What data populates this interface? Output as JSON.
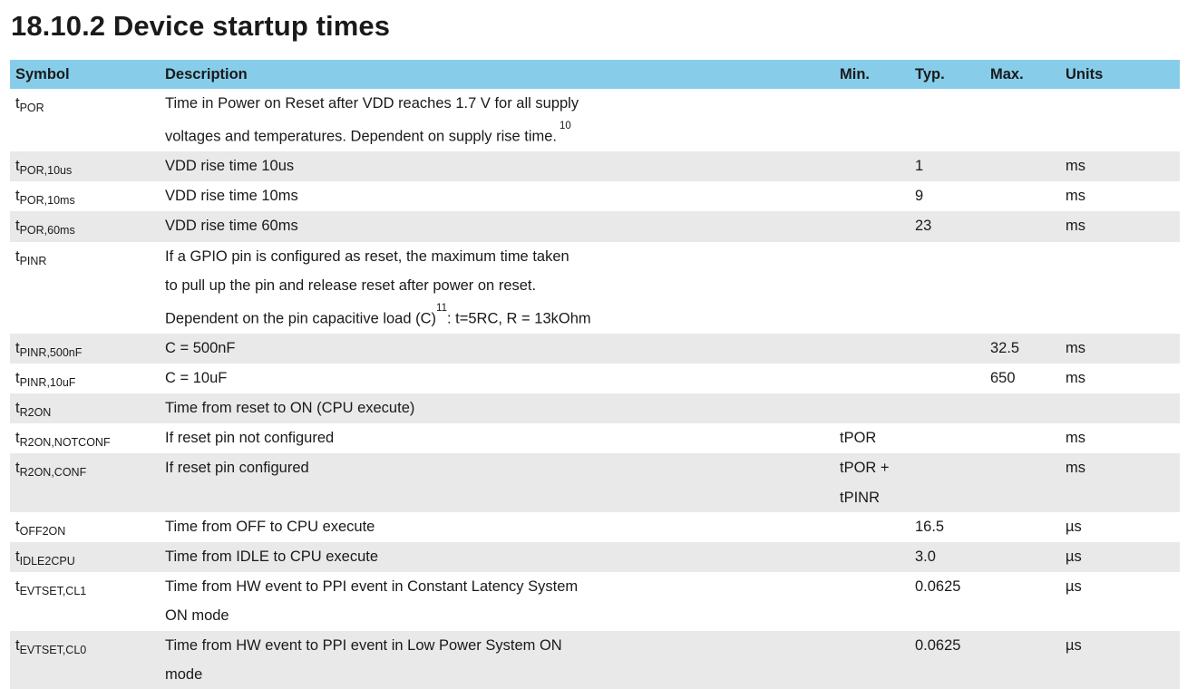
{
  "title": "18.10.2 Device startup times",
  "headers": {
    "symbol": "Symbol",
    "description": "Description",
    "min": "Min.",
    "typ": "Typ.",
    "max": "Max.",
    "units": "Units"
  },
  "rows": [
    {
      "sym": "t",
      "sub": "POR",
      "desc": [
        "Time in Power on Reset after VDD reaches 1.7 V for all supply",
        "voltages and temperatures. Dependent on supply rise time."
      ],
      "fn": "10",
      "min": [],
      "typ": "",
      "max": "",
      "unit": ""
    },
    {
      "sym": "t",
      "sub": "POR,10us",
      "desc": [
        "VDD rise time 10us"
      ],
      "min": [],
      "typ": "1",
      "max": "",
      "unit": "ms"
    },
    {
      "sym": "t",
      "sub": "POR,10ms",
      "desc": [
        "VDD rise time 10ms"
      ],
      "min": [],
      "typ": "9",
      "max": "",
      "unit": "ms"
    },
    {
      "sym": "t",
      "sub": "POR,60ms",
      "desc": [
        "VDD rise time 60ms"
      ],
      "min": [],
      "typ": "23",
      "max": "",
      "unit": "ms"
    },
    {
      "sym": "t",
      "sub": "PINR",
      "desc": [
        "If a GPIO pin is configured as reset, the maximum time taken",
        "to pull up the pin and release reset after power on reset.",
        "Dependent on the pin capacitive load (C)"
      ],
      "fn": "11",
      "desc_tail": ": t=5RC, R = 13kOhm",
      "min": [],
      "typ": "",
      "max": "",
      "unit": ""
    },
    {
      "sym": "t",
      "sub": "PINR,500nF",
      "desc": [
        "C = 500nF"
      ],
      "min": [],
      "typ": "",
      "max": "32.5",
      "unit": "ms"
    },
    {
      "sym": "t",
      "sub": "PINR,10uF",
      "desc": [
        "C = 10uF"
      ],
      "min": [],
      "typ": "",
      "max": "650",
      "unit": "ms"
    },
    {
      "sym": "t",
      "sub": "R2ON",
      "desc": [
        "Time from reset to ON (CPU execute)"
      ],
      "min": [],
      "typ": "",
      "max": "",
      "unit": ""
    },
    {
      "sym": "t",
      "sub": "R2ON,NOTCONF",
      "desc": [
        "If reset pin not configured"
      ],
      "min": [
        "tPOR"
      ],
      "typ": "",
      "max": "",
      "unit": "ms"
    },
    {
      "sym": "t",
      "sub": "R2ON,CONF",
      "desc": [
        "If reset pin configured"
      ],
      "min": [
        "tPOR +",
        "tPINR"
      ],
      "typ": "",
      "max": "",
      "unit": "ms"
    },
    {
      "sym": "t",
      "sub": "OFF2ON",
      "desc": [
        "Time from OFF to CPU execute"
      ],
      "min": [],
      "typ": "16.5",
      "max": "",
      "unit": "µs"
    },
    {
      "sym": "t",
      "sub": "IDLE2CPU",
      "desc": [
        "Time from IDLE to CPU execute"
      ],
      "min": [],
      "typ": "3.0",
      "max": "",
      "unit": "µs"
    },
    {
      "sym": "t",
      "sub": "EVTSET,CL1",
      "desc": [
        "Time from HW event to PPI event in Constant Latency System",
        "ON mode"
      ],
      "min": [],
      "typ": "0.0625",
      "max": "",
      "unit": "µs"
    },
    {
      "sym": "t",
      "sub": "EVTSET,CL0",
      "desc": [
        "Time from HW event to PPI event in Low Power System ON",
        "mode"
      ],
      "min": [],
      "typ": "0.0625",
      "max": "",
      "unit": "µs"
    }
  ]
}
